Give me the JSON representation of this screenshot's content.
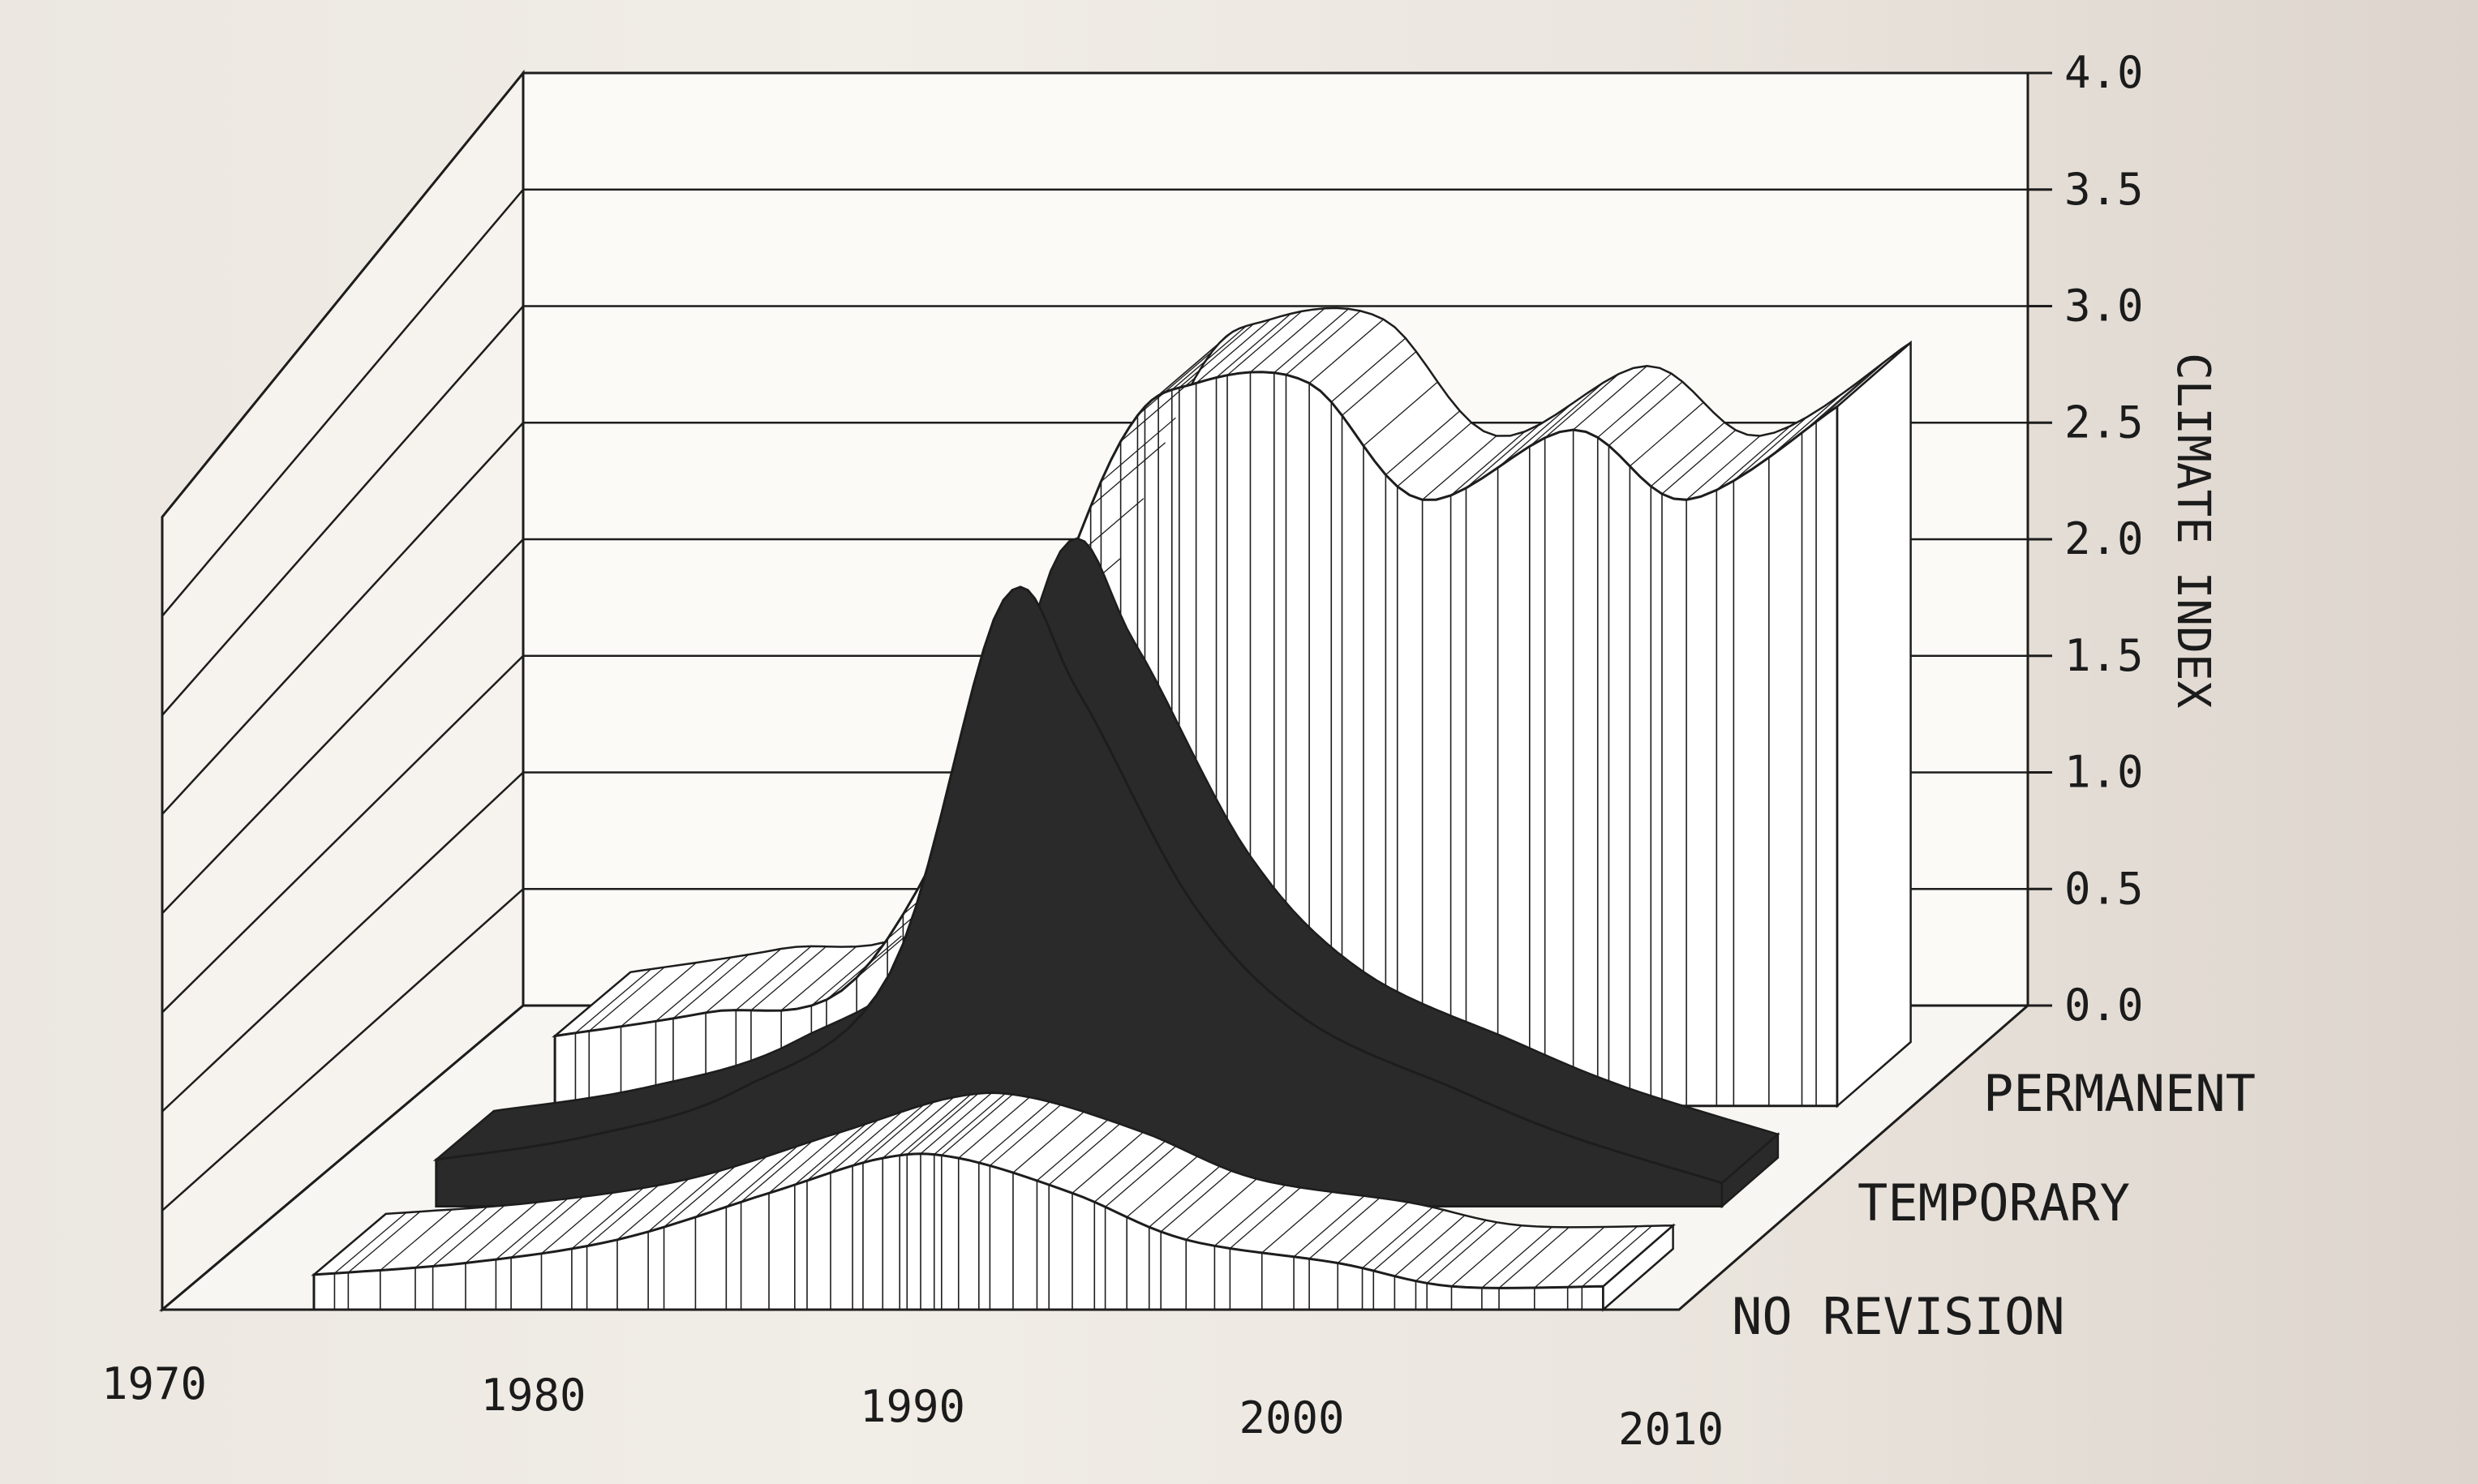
{
  "chart_data": {
    "type": "area",
    "subtype": "3d-stacked-ribbons",
    "title": "",
    "xlabel": "",
    "ylabel": "CLIMATE INDEX",
    "x": [
      1974,
      1978,
      1982,
      1986,
      1989,
      1991,
      1994,
      1997,
      2001,
      2004,
      2008
    ],
    "x_ticks": [
      "1970",
      "1980",
      "1990",
      "2000",
      "2010"
    ],
    "xlim": [
      1970,
      2010
    ],
    "y_ticks": [
      "0.0",
      "0.5",
      "1.0",
      "1.5",
      "2.0",
      "2.5",
      "3.0",
      "3.5",
      "4.0"
    ],
    "ylim": [
      0,
      4
    ],
    "series": [
      {
        "name": "PERMANENT",
        "values": [
          0.3,
          0.4,
          0.55,
          1.7,
          2.85,
          3.1,
          3.1,
          2.6,
          2.9,
          2.6,
          3.0
        ],
        "color": "#ffffff"
      },
      {
        "name": "TEMPORARY",
        "values": [
          0.2,
          0.3,
          0.5,
          1.0,
          2.6,
          2.2,
          1.3,
          0.8,
          0.5,
          0.3,
          0.1
        ],
        "color": "#2a2a2a"
      },
      {
        "name": "NO REVISION",
        "values": [
          0.15,
          0.2,
          0.3,
          0.5,
          0.65,
          0.65,
          0.5,
          0.3,
          0.2,
          0.1,
          0.1
        ],
        "color": "#ffffff"
      }
    ],
    "grid": true,
    "legend": "right"
  }
}
